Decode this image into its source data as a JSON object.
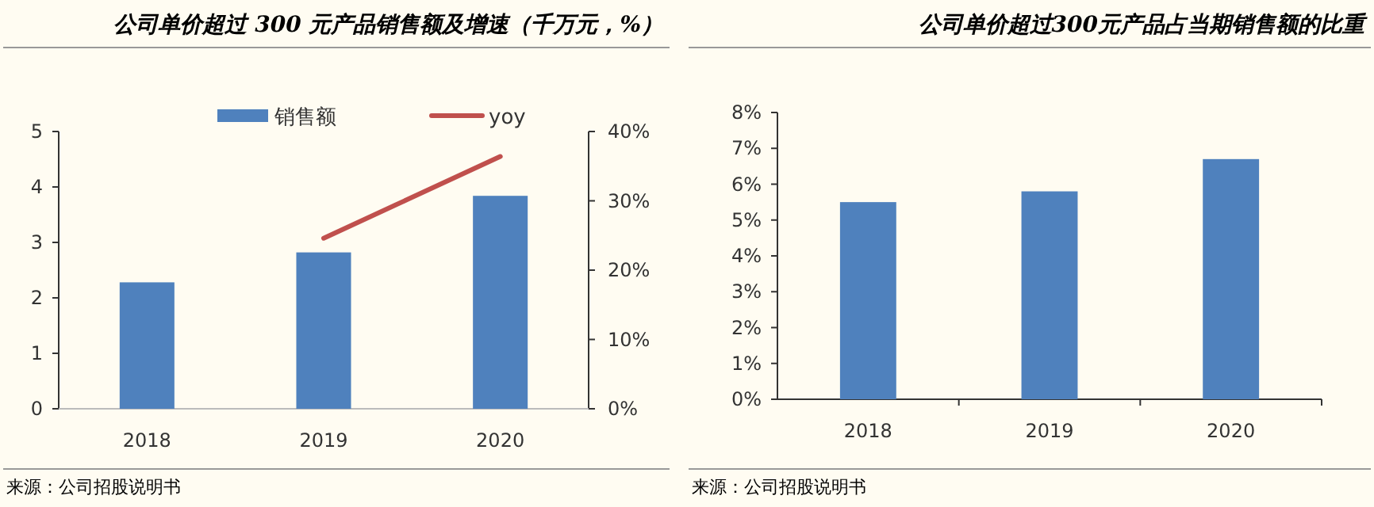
{
  "chart_data": [
    {
      "type": "bar",
      "title": "公司单价超过 300 元产品销售额及增速（千万元，%）",
      "categories": [
        "2018",
        "2019",
        "2020"
      ],
      "series": [
        {
          "name": "销售额",
          "color": "#4f81bd",
          "values": [
            2.28,
            2.82,
            3.84
          ]
        },
        {
          "name": "yoy",
          "type": "line",
          "axis": "y2",
          "color": "#c0504d",
          "values": [
            null,
            24.6,
            36.4
          ]
        }
      ],
      "ylim": [
        0,
        5
      ],
      "yticks": [
        0,
        1,
        2,
        3,
        4,
        5
      ],
      "y2lim": [
        0,
        40
      ],
      "y2ticks": [
        {
          "value": 0,
          "label": "0%"
        },
        {
          "value": 10,
          "label": "10%"
        },
        {
          "value": 20,
          "label": "20%"
        },
        {
          "value": 30,
          "label": "30%"
        },
        {
          "value": 40,
          "label": "40%"
        }
      ],
      "legend": "top",
      "grid": false,
      "annotations": [
        "来源：公司招股说明书"
      ]
    },
    {
      "type": "bar",
      "title": "公司单价超过300元产品占当期销售额的比重",
      "categories": [
        "2018",
        "2019",
        "2020"
      ],
      "series": [
        {
          "color": "#4f81bd",
          "values": [
            5.5,
            5.8,
            6.7
          ]
        }
      ],
      "ylim": [
        0,
        8
      ],
      "yticks": [
        {
          "value": 0,
          "label": "0%"
        },
        {
          "value": 1,
          "label": "1%"
        },
        {
          "value": 2,
          "label": "2%"
        },
        {
          "value": 3,
          "label": "3%"
        },
        {
          "value": 4,
          "label": "4%"
        },
        {
          "value": 5,
          "label": "5%"
        },
        {
          "value": 6,
          "label": "6%"
        },
        {
          "value": 7,
          "label": "7%"
        },
        {
          "value": 8,
          "label": "8%"
        }
      ],
      "legend": false,
      "grid": false,
      "annotations": [
        "来源：公司招股说明书"
      ]
    }
  ]
}
